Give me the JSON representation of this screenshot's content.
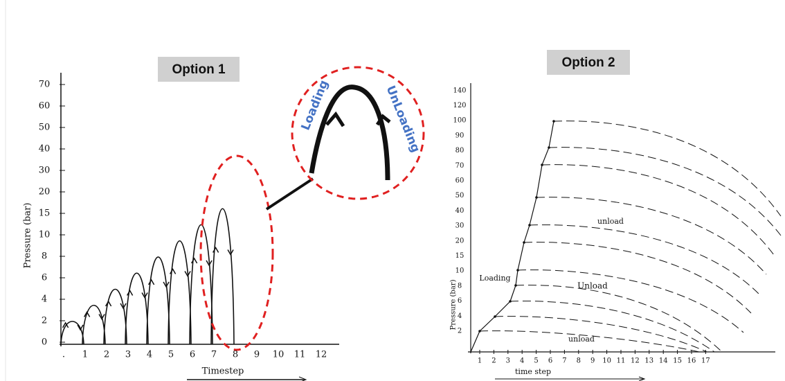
{
  "option1": {
    "title": "Option 1",
    "y_labels": [
      "0",
      "2",
      "4",
      "6",
      "8",
      "10",
      "15",
      "20",
      "30",
      "40",
      "50",
      "60",
      "70"
    ],
    "x_labels": [
      ".",
      "1",
      "2",
      "3",
      "4",
      "5",
      "6",
      "7",
      "8",
      "9",
      "10",
      "11",
      "12"
    ],
    "y_axis_title": "Pressure (bar)",
    "x_axis_title": "Timestep",
    "inset": {
      "loading": "Loading",
      "unloading": "UnLoading"
    }
  },
  "option2": {
    "title": "Option 2",
    "y_labels": [
      "2",
      "4",
      "6",
      "8",
      "10",
      "15",
      "20",
      "30",
      "40",
      "50",
      "60",
      "70",
      "80",
      "90",
      "100",
      "120",
      "140"
    ],
    "x_labels": [
      "1",
      "2",
      "3",
      "4",
      "5",
      "6",
      "7",
      "8",
      "9",
      "10",
      "11",
      "12",
      "13",
      "14",
      "15",
      "16",
      "17"
    ],
    "y_axis_title": "Pressure (bar)",
    "x_axis_title": "time step",
    "annotations": {
      "loading": "Loading",
      "unload": [
        "unload",
        "Unload",
        "unload"
      ]
    }
  }
}
